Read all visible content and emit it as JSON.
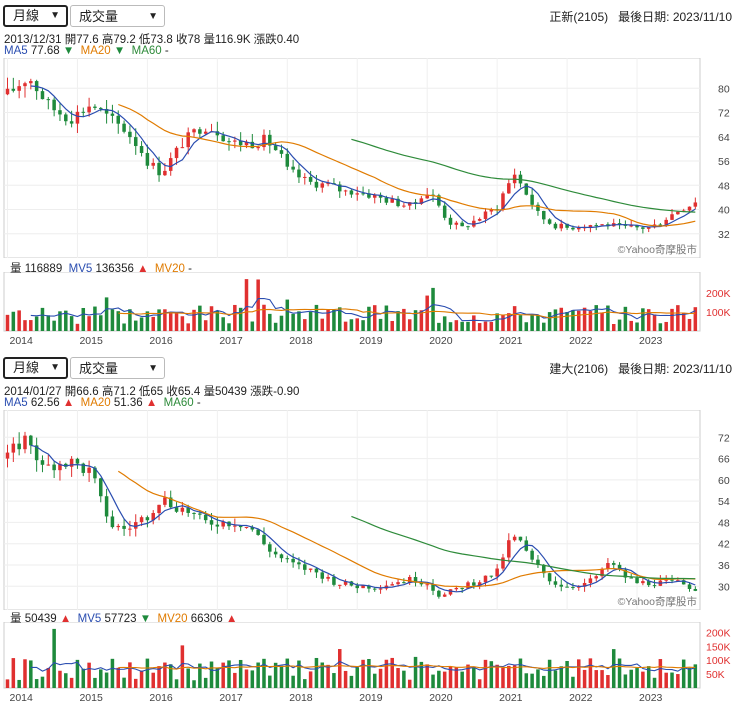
{
  "charts": [
    {
      "period_select": "月線",
      "indicator_select": "成交量",
      "stock": "正新(2105)",
      "last_date_label": "最後日期:",
      "last_date": "2023/11/10",
      "ohlc_line": "2013/12/31 開77.6 高79.2 低73.8 收78 量116.9K 漲跌0.40",
      "ma": [
        {
          "label": "MA5",
          "value": "77.68",
          "dir": "▼"
        },
        {
          "label": "MA20",
          "value": "",
          "dir": "▼"
        },
        {
          "label": "MA60",
          "value": "-",
          "dir": ""
        }
      ],
      "vol_legend": [
        {
          "label": "量",
          "value": "116889",
          "dir": ""
        },
        {
          "label": "MV5",
          "value": "136356",
          "dir": "▲"
        },
        {
          "label": "MV20",
          "value": "-",
          "dir": ""
        }
      ],
      "watermark": "©Yahoo奇摩股市"
    },
    {
      "period_select": "月線",
      "indicator_select": "成交量",
      "stock": "建大(2106)",
      "last_date_label": "最後日期:",
      "last_date": "2023/11/10",
      "ohlc_line": "2014/01/27 開66.6 高71.2 低65 收65.4 量50439 漲跌-0.90",
      "ma": [
        {
          "label": "MA5",
          "value": "62.56",
          "dir": "▲"
        },
        {
          "label": "MA20",
          "value": "51.36",
          "dir": "▲"
        },
        {
          "label": "MA60",
          "value": "-",
          "dir": ""
        }
      ],
      "vol_legend": [
        {
          "label": "量",
          "value": "50439",
          "dir": "▲"
        },
        {
          "label": "MV5",
          "value": "57723",
          "dir": "▼"
        },
        {
          "label": "MV20",
          "value": "66306",
          "dir": "▲"
        }
      ],
      "watermark": "©Yahoo奇摩股市"
    }
  ],
  "chart_data": [
    {
      "type": "candlestick",
      "x_labels": [
        "2014",
        "2015",
        "2016",
        "2017",
        "2018",
        "2019",
        "2020",
        "2021",
        "2022",
        "2023"
      ],
      "price_ticks": [
        32,
        40,
        48,
        56,
        64,
        72,
        80
      ],
      "price_range": [
        26,
        88
      ],
      "close_path": [
        [
          2014.0,
          78
        ],
        [
          2014.3,
          84
        ],
        [
          2014.6,
          74
        ],
        [
          2014.9,
          70
        ],
        [
          2015.2,
          75
        ],
        [
          2015.4,
          71
        ],
        [
          2015.7,
          66
        ],
        [
          2015.9,
          60
        ],
        [
          2016.0,
          56
        ],
        [
          2016.2,
          52
        ],
        [
          2016.5,
          62
        ],
        [
          2016.8,
          68
        ],
        [
          2017.0,
          66
        ],
        [
          2017.2,
          62
        ],
        [
          2017.5,
          62
        ],
        [
          2017.7,
          63
        ],
        [
          2017.9,
          58
        ],
        [
          2018.0,
          53
        ],
        [
          2018.3,
          49
        ],
        [
          2018.6,
          48
        ],
        [
          2018.8,
          46
        ],
        [
          2019.0,
          46
        ],
        [
          2019.3,
          44
        ],
        [
          2019.6,
          42
        ],
        [
          2019.8,
          41
        ],
        [
          2019.95,
          46
        ],
        [
          2020.1,
          44
        ],
        [
          2020.3,
          36
        ],
        [
          2020.5,
          34
        ],
        [
          2020.8,
          38
        ],
        [
          2021.0,
          41
        ],
        [
          2021.1,
          46
        ],
        [
          2021.25,
          52
        ],
        [
          2021.4,
          46
        ],
        [
          2021.6,
          38
        ],
        [
          2021.8,
          35
        ],
        [
          2022.0,
          34
        ],
        [
          2022.3,
          35
        ],
        [
          2022.6,
          35
        ],
        [
          2022.8,
          34
        ],
        [
          2023.0,
          34
        ],
        [
          2023.2,
          34
        ],
        [
          2023.4,
          37
        ],
        [
          2023.6,
          40
        ],
        [
          2023.8,
          42
        ],
        [
          2023.87,
          44
        ]
      ],
      "vol_ticks": [
        {
          "label": "200K",
          "value": 200000
        },
        {
          "label": "100K",
          "value": 100000
        }
      ],
      "vol_range": [
        0,
        300000
      ],
      "legend": [
        "MA5",
        "MA20",
        "MA60"
      ]
    },
    {
      "type": "candlestick",
      "x_labels": [
        "2014",
        "2015",
        "2016",
        "2017",
        "2018",
        "2019",
        "2020",
        "2021",
        "2022",
        "2023"
      ],
      "price_ticks": [
        30,
        36,
        42,
        48,
        54,
        60,
        66,
        72
      ],
      "price_range": [
        25,
        78
      ],
      "close_path": [
        [
          2014.0,
          66
        ],
        [
          2014.15,
          70
        ],
        [
          2014.3,
          72
        ],
        [
          2014.5,
          63
        ],
        [
          2014.7,
          65
        ],
        [
          2014.9,
          65
        ],
        [
          2015.2,
          62
        ],
        [
          2015.35,
          53
        ],
        [
          2015.5,
          47
        ],
        [
          2015.7,
          46
        ],
        [
          2016.0,
          50
        ],
        [
          2016.2,
          55
        ],
        [
          2016.35,
          53
        ],
        [
          2016.6,
          51
        ],
        [
          2016.8,
          48
        ],
        [
          2017.0,
          48
        ],
        [
          2017.3,
          48
        ],
        [
          2017.5,
          46
        ],
        [
          2017.7,
          41
        ],
        [
          2017.9,
          38
        ],
        [
          2018.1,
          36
        ],
        [
          2018.4,
          34
        ],
        [
          2018.7,
          31
        ],
        [
          2019.0,
          30
        ],
        [
          2019.3,
          30
        ],
        [
          2019.5,
          31
        ],
        [
          2019.8,
          32
        ],
        [
          2020.0,
          31
        ],
        [
          2020.2,
          27
        ],
        [
          2020.5,
          30
        ],
        [
          2020.8,
          32
        ],
        [
          2021.0,
          34
        ],
        [
          2021.15,
          42
        ],
        [
          2021.3,
          44
        ],
        [
          2021.45,
          38
        ],
        [
          2021.6,
          35
        ],
        [
          2021.8,
          31
        ],
        [
          2022.0,
          30
        ],
        [
          2022.3,
          31
        ],
        [
          2022.5,
          34
        ],
        [
          2022.6,
          37
        ],
        [
          2022.8,
          33
        ],
        [
          2023.0,
          31
        ],
        [
          2023.3,
          31
        ],
        [
          2023.6,
          31
        ],
        [
          2023.87,
          29
        ]
      ],
      "vol_ticks": [
        {
          "label": "200K",
          "value": 200000
        },
        {
          "label": "150K",
          "value": 150000
        },
        {
          "label": "100K",
          "value": 100000
        },
        {
          "label": "50K",
          "value": 50000
        }
      ],
      "vol_range": [
        0,
        230000
      ],
      "legend": [
        "MA5",
        "MA20",
        "MA60"
      ]
    }
  ]
}
